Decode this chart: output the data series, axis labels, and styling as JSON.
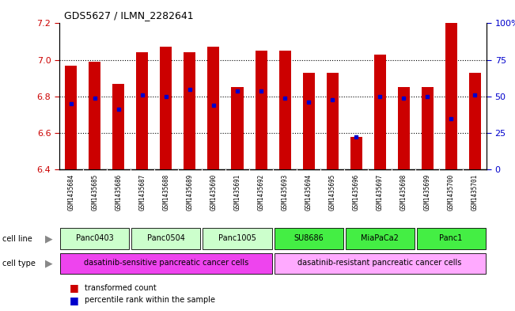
{
  "title": "GDS5627 / ILMN_2282641",
  "samples": [
    "GSM1435684",
    "GSM1435685",
    "GSM1435686",
    "GSM1435687",
    "GSM1435688",
    "GSM1435689",
    "GSM1435690",
    "GSM1435691",
    "GSM1435692",
    "GSM1435693",
    "GSM1435694",
    "GSM1435695",
    "GSM1435696",
    "GSM1435697",
    "GSM1435698",
    "GSM1435699",
    "GSM1435700",
    "GSM1435701"
  ],
  "bar_values": [
    6.97,
    6.99,
    6.87,
    7.04,
    7.07,
    7.04,
    7.07,
    6.85,
    7.05,
    7.05,
    6.93,
    6.93,
    6.58,
    7.03,
    6.85,
    6.85,
    7.2,
    6.93
  ],
  "percentile_values": [
    6.76,
    6.79,
    6.73,
    6.81,
    6.8,
    6.84,
    6.75,
    6.83,
    6.83,
    6.79,
    6.77,
    6.78,
    6.58,
    6.8,
    6.79,
    6.8,
    6.68,
    6.81
  ],
  "ylim": [
    6.4,
    7.2
  ],
  "yticks": [
    6.4,
    6.6,
    6.8,
    7.0,
    7.2
  ],
  "right_yticks": [
    0,
    25,
    50,
    75,
    100
  ],
  "right_ytick_labels": [
    "0",
    "25",
    "50",
    "75",
    "100%"
  ],
  "cell_line_groups": [
    {
      "label": "Panc0403",
      "start": 0,
      "end": 2,
      "color": "#ccffcc"
    },
    {
      "label": "Panc0504",
      "start": 3,
      "end": 5,
      "color": "#ccffcc"
    },
    {
      "label": "Panc1005",
      "start": 6,
      "end": 8,
      "color": "#ccffcc"
    },
    {
      "label": "SU8686",
      "start": 9,
      "end": 11,
      "color": "#44ee44"
    },
    {
      "label": "MiaPaCa2",
      "start": 12,
      "end": 14,
      "color": "#44ee44"
    },
    {
      "label": "Panc1",
      "start": 15,
      "end": 17,
      "color": "#44ee44"
    }
  ],
  "cell_type_groups": [
    {
      "label": "dasatinib-sensitive pancreatic cancer cells",
      "start": 0,
      "end": 8,
      "color": "#ee44ee"
    },
    {
      "label": "dasatinib-resistant pancreatic cancer cells",
      "start": 9,
      "end": 17,
      "color": "#ffaaff"
    }
  ],
  "bar_color": "#cc0000",
  "dot_color": "#0000cc",
  "bar_width": 0.5,
  "background_color": "#ffffff",
  "plot_bg_color": "#ffffff",
  "left_tick_color": "#cc0000",
  "right_tick_color": "#0000cc",
  "xtick_bg": "#c8c8c8",
  "grid_color": "#000000"
}
